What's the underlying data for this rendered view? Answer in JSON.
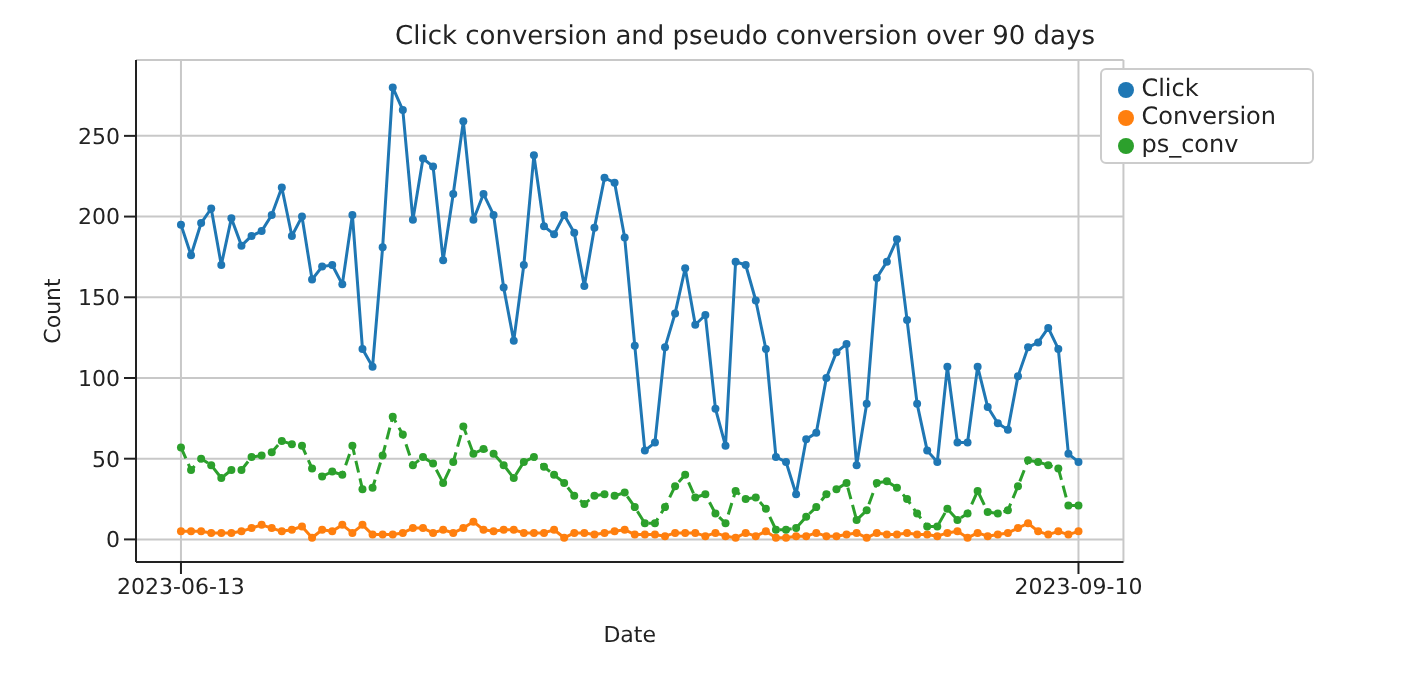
{
  "chart_data": {
    "type": "line",
    "title": "Click conversion and pseudo conversion over 90 days",
    "xlabel": "Date",
    "ylabel": "Count",
    "x": [
      "2023-06-13",
      "2023-06-14",
      "2023-06-15",
      "2023-06-16",
      "2023-06-17",
      "2023-06-18",
      "2023-06-19",
      "2023-06-20",
      "2023-06-21",
      "2023-06-22",
      "2023-06-23",
      "2023-06-24",
      "2023-06-25",
      "2023-06-26",
      "2023-06-27",
      "2023-06-28",
      "2023-06-29",
      "2023-06-30",
      "2023-07-01",
      "2023-07-02",
      "2023-07-03",
      "2023-07-04",
      "2023-07-05",
      "2023-07-06",
      "2023-07-07",
      "2023-07-08",
      "2023-07-09",
      "2023-07-10",
      "2023-07-11",
      "2023-07-12",
      "2023-07-13",
      "2023-07-14",
      "2023-07-15",
      "2023-07-16",
      "2023-07-17",
      "2023-07-18",
      "2023-07-19",
      "2023-07-20",
      "2023-07-21",
      "2023-07-22",
      "2023-07-23",
      "2023-07-24",
      "2023-07-25",
      "2023-07-26",
      "2023-07-27",
      "2023-07-28",
      "2023-07-29",
      "2023-07-30",
      "2023-07-31",
      "2023-08-01",
      "2023-08-02",
      "2023-08-03",
      "2023-08-04",
      "2023-08-05",
      "2023-08-06",
      "2023-08-07",
      "2023-08-08",
      "2023-08-09",
      "2023-08-10",
      "2023-08-11",
      "2023-08-12",
      "2023-08-13",
      "2023-08-14",
      "2023-08-15",
      "2023-08-16",
      "2023-08-17",
      "2023-08-18",
      "2023-08-19",
      "2023-08-20",
      "2023-08-21",
      "2023-08-22",
      "2023-08-23",
      "2023-08-24",
      "2023-08-25",
      "2023-08-26",
      "2023-08-27",
      "2023-08-28",
      "2023-08-29",
      "2023-08-30",
      "2023-08-31",
      "2023-09-01",
      "2023-09-02",
      "2023-09-03",
      "2023-09-04",
      "2023-09-05",
      "2023-09-06",
      "2023-09-07",
      "2023-09-08",
      "2023-09-09",
      "2023-09-10"
    ],
    "series": [
      {
        "name": "Click",
        "color": "#1f77b4",
        "line_style": "solid",
        "values": [
          195,
          176,
          196,
          205,
          170,
          199,
          182,
          188,
          191,
          201,
          218,
          188,
          200,
          161,
          169,
          170,
          158,
          201,
          118,
          107,
          181,
          280,
          266,
          198,
          236,
          231,
          173,
          214,
          259,
          198,
          214,
          201,
          156,
          123,
          170,
          238,
          194,
          189,
          201,
          190,
          157,
          193,
          224,
          221,
          187,
          120,
          55,
          60,
          119,
          140,
          168,
          133,
          139,
          81,
          58,
          172,
          170,
          148,
          118,
          51,
          48,
          28,
          62,
          66,
          100,
          116,
          121,
          46,
          84,
          162,
          172,
          186,
          136,
          84,
          55,
          48,
          107,
          60,
          60,
          107,
          82,
          72,
          68,
          101,
          119,
          122,
          131,
          118,
          53,
          48
        ]
      },
      {
        "name": "Conversion",
        "color": "#ff7f0e",
        "line_style": "solid",
        "values": [
          5,
          5,
          5,
          4,
          4,
          4,
          5,
          7,
          9,
          7,
          5,
          6,
          8,
          1,
          6,
          5,
          9,
          4,
          9,
          3,
          3,
          3,
          4,
          7,
          7,
          4,
          6,
          4,
          7,
          11,
          6,
          5,
          6,
          6,
          4,
          4,
          4,
          6,
          1,
          4,
          4,
          3,
          4,
          5,
          6,
          3,
          3,
          3,
          2,
          4,
          4,
          4,
          2,
          4,
          2,
          1,
          4,
          2,
          5,
          1,
          1,
          2,
          2,
          4,
          2,
          2,
          3,
          4,
          1,
          4,
          3,
          3,
          4,
          3,
          3,
          2,
          4,
          5,
          1,
          4,
          2,
          3,
          4,
          7,
          10,
          5,
          3,
          5,
          3,
          5
        ]
      },
      {
        "name": "ps_conv",
        "color": "#2ca02c",
        "line_style": "dashed",
        "values": [
          57,
          43,
          50,
          46,
          38,
          43,
          43,
          51,
          52,
          54,
          61,
          59,
          58,
          44,
          39,
          42,
          40,
          58,
          31,
          32,
          52,
          76,
          65,
          46,
          51,
          47,
          35,
          48,
          70,
          53,
          56,
          53,
          46,
          38,
          48,
          51,
          45,
          40,
          35,
          27,
          22,
          27,
          28,
          27,
          29,
          20,
          10,
          10,
          20,
          33,
          40,
          26,
          28,
          16,
          10,
          30,
          25,
          26,
          19,
          6,
          6,
          7,
          14,
          20,
          28,
          31,
          35,
          12,
          18,
          35,
          36,
          32,
          25,
          16,
          8,
          8,
          19,
          12,
          16,
          30,
          17,
          16,
          18,
          33,
          49,
          48,
          46,
          44,
          21,
          21
        ]
      }
    ],
    "xlim": [
      "2023-06-08T13:00",
      "2023-09-14T11:00"
    ],
    "xticks": [
      "2023-06-13",
      "2023-09-10"
    ],
    "ylim": [
      -14,
      297
    ],
    "yticks": [
      0,
      50,
      100,
      150,
      200,
      250
    ],
    "grid": true,
    "legend": "top right",
    "marker": "circle"
  }
}
